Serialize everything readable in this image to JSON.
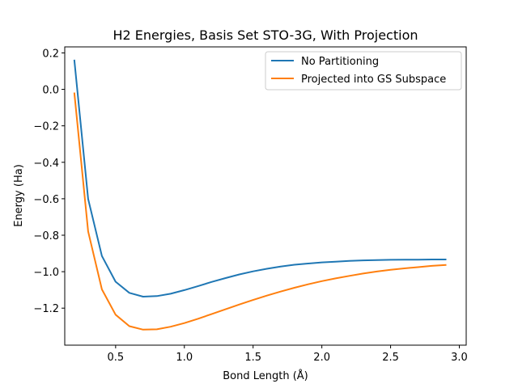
{
  "chart_data": {
    "type": "line",
    "title": "H2 Energies, Basis Set STO-3G, With Projection",
    "xlabel": "Bond Length (Å)",
    "ylabel": "Energy (Ha)",
    "xlim": [
      0.13,
      3.05
    ],
    "ylim": [
      -1.403,
      0.233
    ],
    "xticks": [
      0.5,
      1.0,
      1.5,
      2.0,
      2.5,
      3.0
    ],
    "xtick_labels": [
      "0.5",
      "1.0",
      "1.5",
      "2.0",
      "2.5",
      "3.0"
    ],
    "yticks": [
      0.2,
      0.0,
      -0.2,
      -0.4,
      -0.6,
      -0.8,
      -1.0,
      -1.2
    ],
    "ytick_labels": [
      "0.2",
      "0.0",
      "−0.2",
      "−0.4",
      "−0.6",
      "−0.8",
      "−1.0",
      "−1.2"
    ],
    "grid": false,
    "legend_position": "top-right",
    "x": [
      0.2,
      0.3,
      0.4,
      0.5,
      0.6,
      0.7,
      0.8,
      0.9,
      1.0,
      1.1,
      1.2,
      1.3,
      1.4,
      1.5,
      1.6,
      1.7,
      1.8,
      1.9,
      2.0,
      2.1,
      2.2,
      2.3,
      2.4,
      2.5,
      2.6,
      2.7,
      2.8,
      2.9
    ],
    "series": [
      {
        "name": "No Partitioning",
        "color": "#1f77b4",
        "values": [
          0.158,
          -0.601,
          -0.914,
          -1.055,
          -1.116,
          -1.137,
          -1.134,
          -1.121,
          -1.101,
          -1.079,
          -1.056,
          -1.035,
          -1.015,
          -0.998,
          -0.984,
          -0.972,
          -0.962,
          -0.955,
          -0.949,
          -0.945,
          -0.941,
          -0.938,
          -0.936,
          -0.935,
          -0.934,
          -0.934,
          -0.933,
          -0.933
        ]
      },
      {
        "name": "Projected into GS Subspace",
        "color": "#ff7f0e",
        "values": [
          -0.022,
          -0.779,
          -1.097,
          -1.236,
          -1.299,
          -1.318,
          -1.316,
          -1.302,
          -1.282,
          -1.258,
          -1.232,
          -1.206,
          -1.18,
          -1.155,
          -1.131,
          -1.109,
          -1.088,
          -1.069,
          -1.052,
          -1.037,
          -1.023,
          -1.01,
          -0.999,
          -0.99,
          -0.982,
          -0.975,
          -0.968,
          -0.963
        ]
      }
    ]
  }
}
